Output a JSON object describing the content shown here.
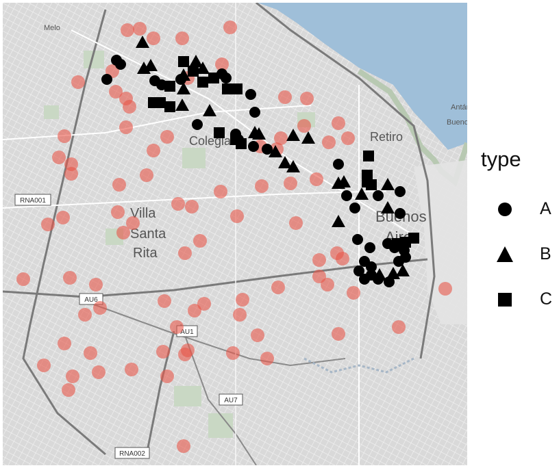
{
  "map": {
    "place_labels": [
      "Melo",
      "Retiro",
      "Colegiales",
      "Villa",
      "Santa",
      "Rita",
      "Buenos",
      "Aires",
      "Antártida",
      "Buenos"
    ],
    "road_shields": [
      "RNA001",
      "AU6",
      "AU1",
      "AU7",
      "RNA002"
    ],
    "colors": {
      "water": "#9fbfd9",
      "land": "#dcdcdc",
      "park": "#c9d8c4",
      "background_points": "#e8574a",
      "type_points": "#000000"
    }
  },
  "legend": {
    "title": "type",
    "items": [
      {
        "label": "A",
        "shape": "circle"
      },
      {
        "label": "B",
        "shape": "triangle"
      },
      {
        "label": "C",
        "shape": "square"
      }
    ]
  }
}
